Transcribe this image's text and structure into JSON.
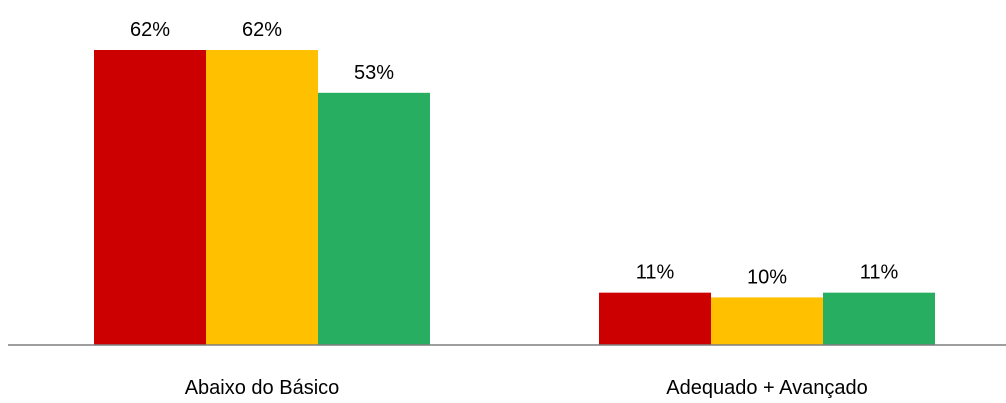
{
  "chart_data": {
    "type": "bar",
    "title": "",
    "xlabel": "",
    "ylabel": "",
    "categories": [
      "Abaixo do Básico",
      "Adequado + Avançado"
    ],
    "series": [
      {
        "values": [
          62,
          11
        ],
        "labels": [
          "62%",
          "11%"
        ],
        "color": "#cc0000"
      },
      {
        "values": [
          62,
          10
        ],
        "labels": [
          "62%",
          "10%"
        ],
        "color": "#ffc000"
      },
      {
        "values": [
          53,
          11
        ],
        "labels": [
          "53%",
          "11%"
        ],
        "color": "#27ae60"
      }
    ],
    "ylim": [
      0,
      62
    ],
    "grid": false,
    "legend": "none",
    "axis_color": "#7f7f7f",
    "label_color": "#000000"
  }
}
